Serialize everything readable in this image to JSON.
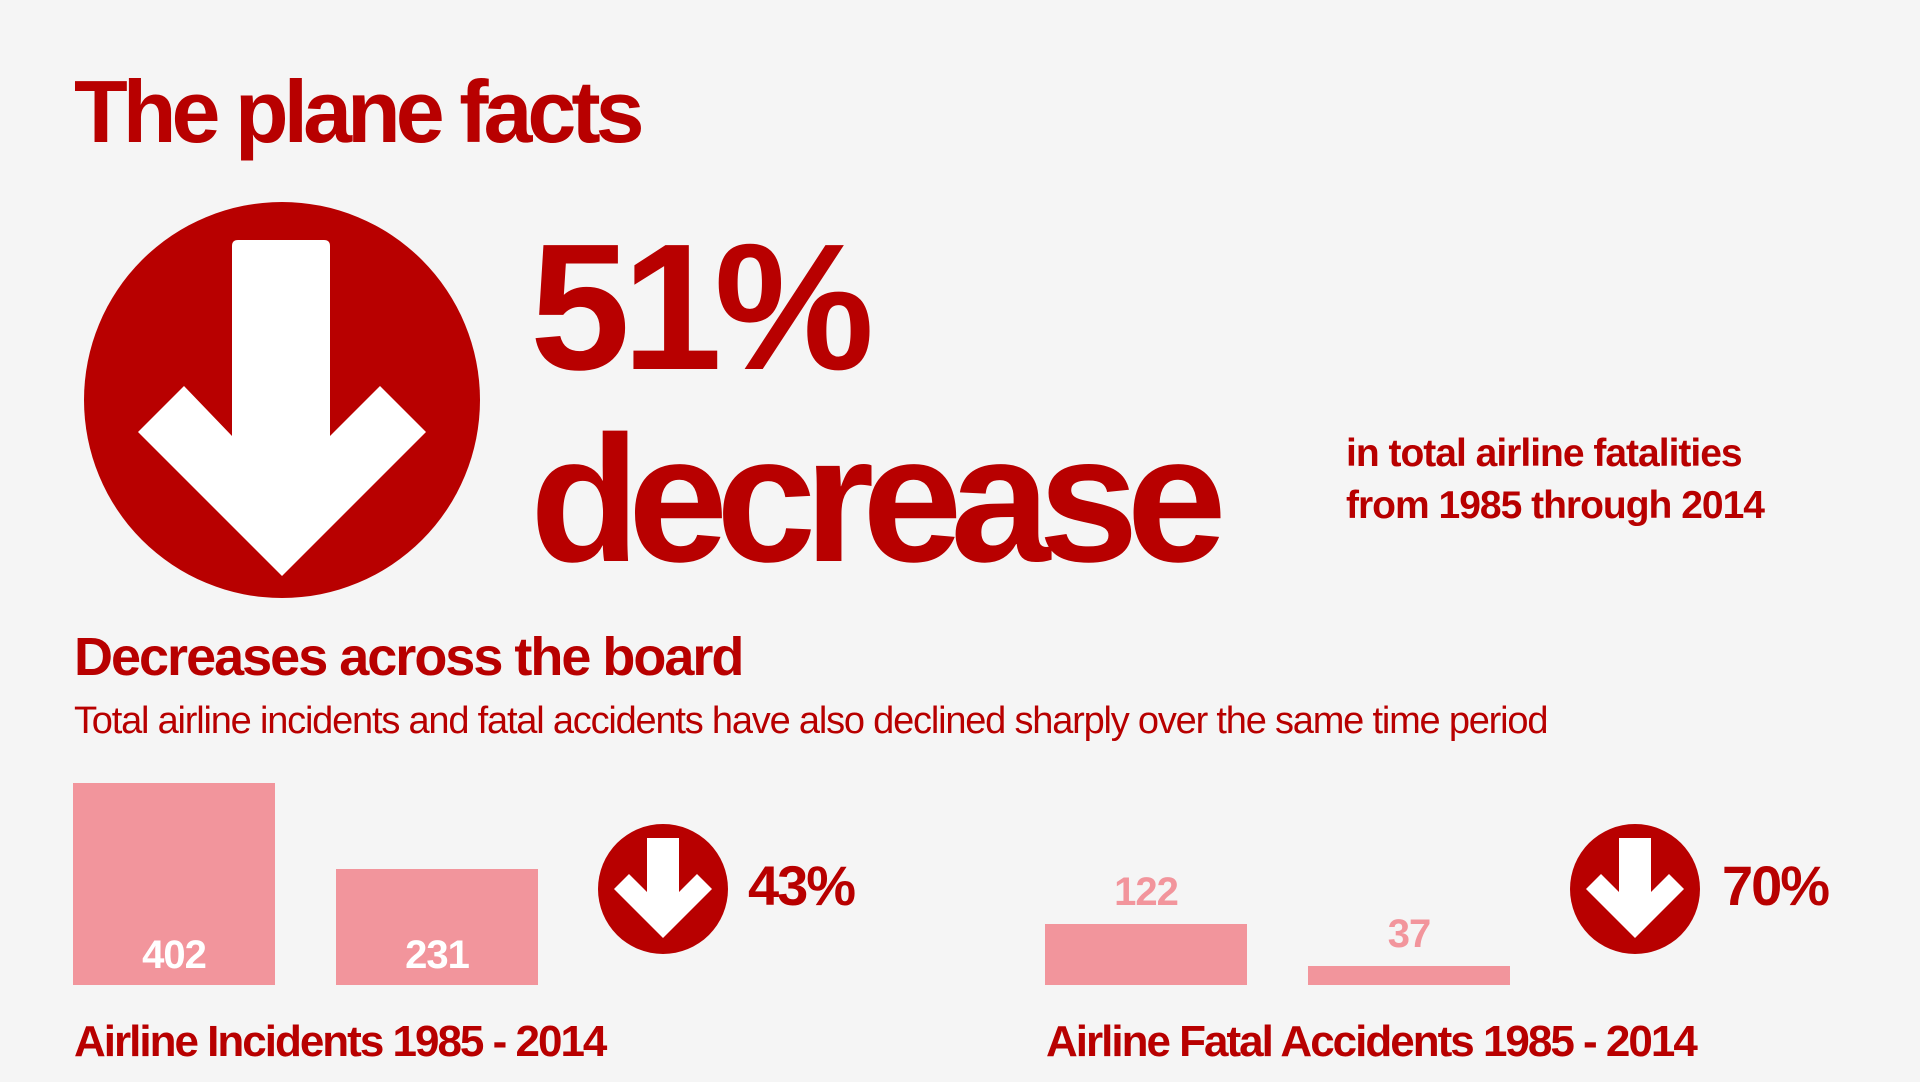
{
  "header": {
    "title": "The plane facts"
  },
  "headline": {
    "value": "51%",
    "word": "decrease",
    "description": "in total airline fatalities from 1985 through 2014",
    "icon": "down-arrow-icon"
  },
  "section": {
    "title": "Decreases across the board",
    "description": "Total airline incidents and fatal accidents have also declined sharply over the same time period"
  },
  "colors": {
    "accent": "#b80000",
    "bar": "#f2959c",
    "background": "#f5f5f5"
  },
  "chart_data": [
    {
      "type": "bar",
      "title": "Airline Incidents 1985 - 2014",
      "categories": [
        "1985",
        "2014"
      ],
      "values": [
        402,
        231
      ],
      "labels": [
        "402",
        "231"
      ],
      "change": "43%",
      "ylim": [
        0,
        402
      ]
    },
    {
      "type": "bar",
      "title": "Airline Fatal Accidents 1985 - 2014",
      "categories": [
        "1985",
        "2014"
      ],
      "values": [
        122,
        37
      ],
      "labels": [
        "122",
        "37"
      ],
      "change": "70%",
      "ylim": [
        0,
        402
      ]
    }
  ]
}
